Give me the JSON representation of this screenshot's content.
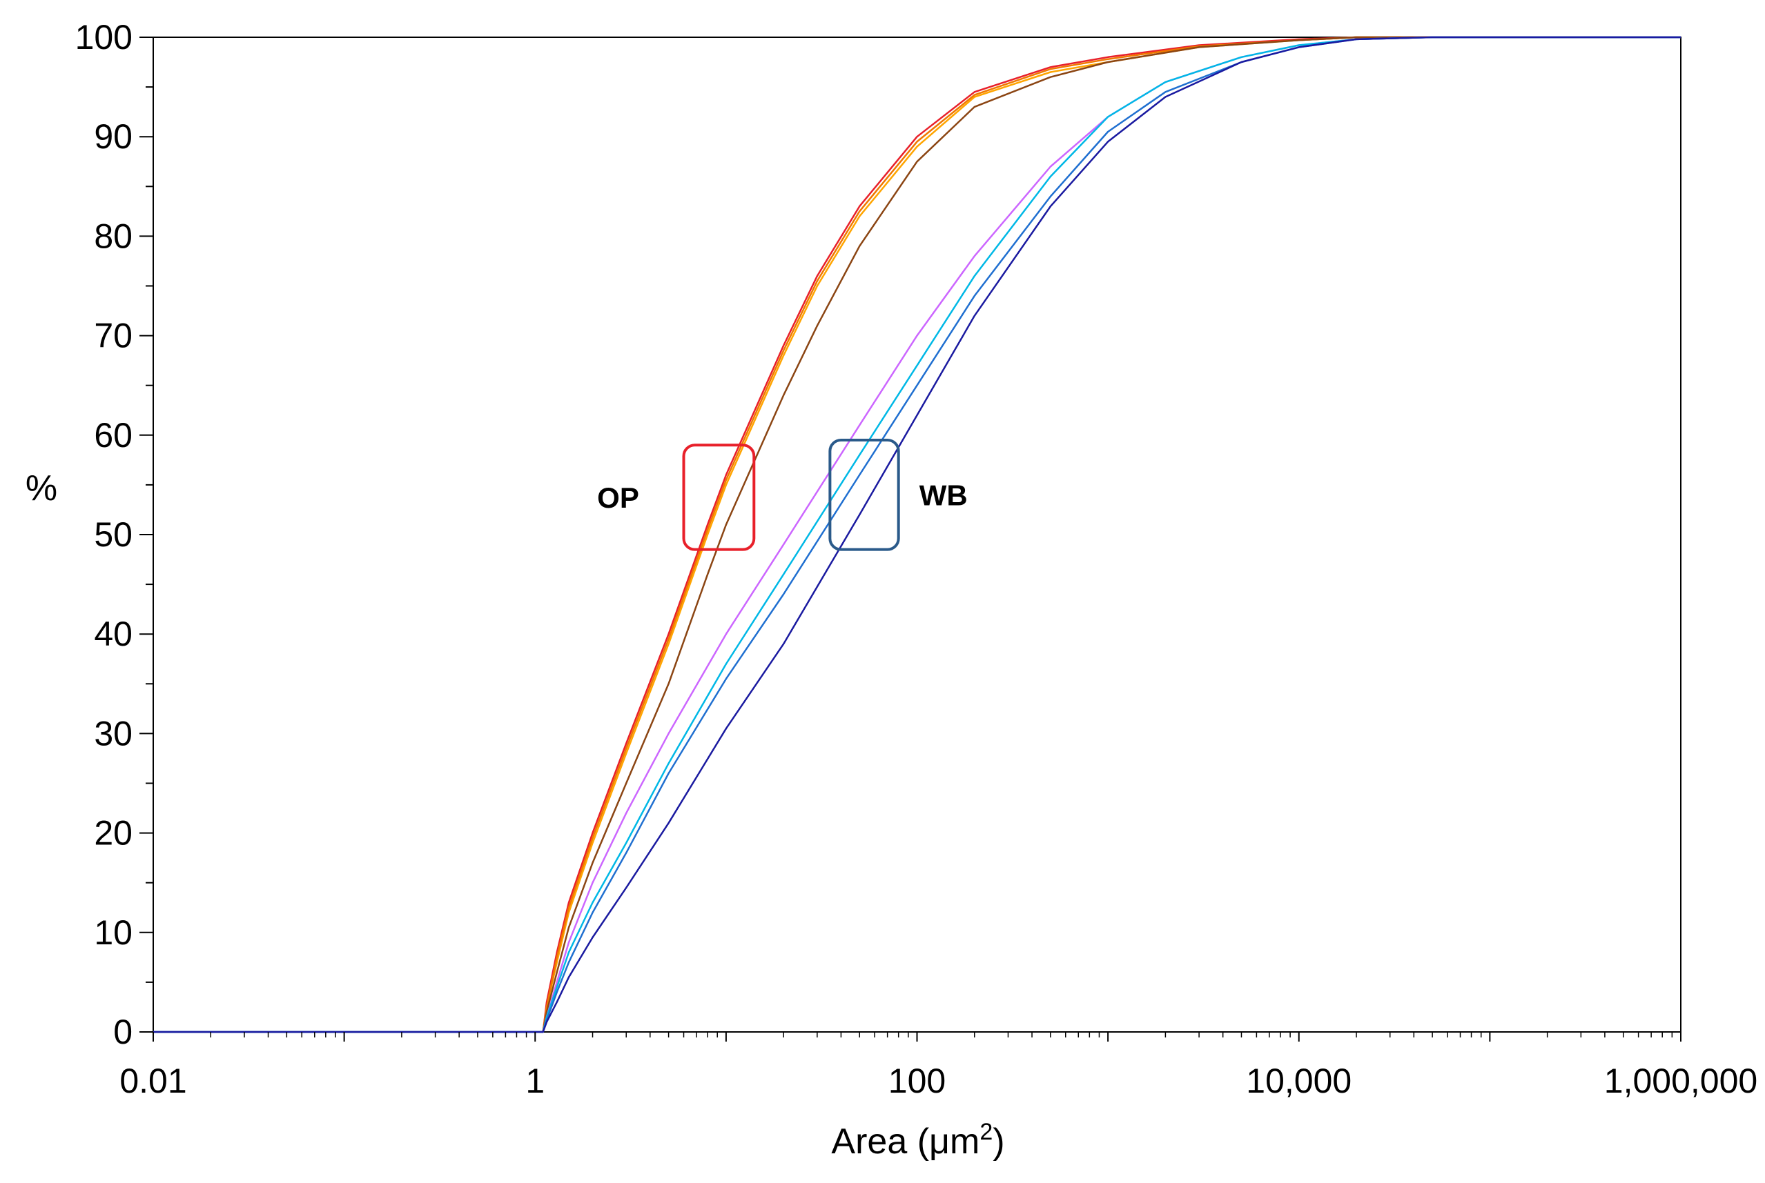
{
  "chart_data": {
    "type": "line",
    "title": "",
    "xlabel": "Area (μm",
    "xlabel_superscript": "2",
    "xlabel_close": ")",
    "ylabel": "%",
    "xscale": "log",
    "xlim": [
      0.01,
      1000000
    ],
    "ylim": [
      0,
      100
    ],
    "x_tick_labels": [
      "0.01",
      "1",
      "100",
      "10,000",
      "1,000,000"
    ],
    "x_tick_values": [
      0.01,
      1,
      100,
      10000,
      1000000
    ],
    "y_tick_labels": [
      "0",
      "10",
      "20",
      "30",
      "40",
      "50",
      "60",
      "70",
      "80",
      "90",
      "100"
    ],
    "y_tick_values": [
      0,
      10,
      20,
      30,
      40,
      50,
      60,
      70,
      80,
      90,
      100
    ],
    "grid": false,
    "legend": "none",
    "series": [
      {
        "name": "OP red",
        "group": "OP",
        "color": "#e8202a",
        "x": [
          0.01,
          1.1,
          1.15,
          1.3,
          1.5,
          2,
          3,
          5,
          8,
          10,
          20,
          30,
          50,
          100,
          200,
          500,
          1000,
          3000,
          10000,
          20000,
          100000,
          1000000
        ],
        "y": [
          0,
          0,
          3,
          8,
          13,
          20,
          29,
          40,
          51,
          56,
          69,
          76,
          83,
          90,
          94.5,
          97,
          98,
          99.2,
          99.8,
          100,
          100,
          100
        ]
      },
      {
        "name": "OP orange",
        "group": "OP",
        "color": "#ffa500",
        "x": [
          0.01,
          1.1,
          1.15,
          1.3,
          1.5,
          2,
          3,
          5,
          8,
          10,
          20,
          30,
          50,
          100,
          200,
          500,
          1000,
          3000,
          10000,
          20000,
          100000,
          1000000
        ],
        "y": [
          0,
          0,
          2.5,
          7,
          12,
          19,
          28,
          39,
          50,
          55,
          68,
          75,
          82,
          89,
          94,
          96.5,
          97.5,
          99,
          99.7,
          100,
          100,
          100
        ]
      },
      {
        "name": "OP dark orange",
        "group": "OP",
        "color": "#f07800",
        "x": [
          0.01,
          1.1,
          1.15,
          1.3,
          1.5,
          2,
          3,
          5,
          8,
          10,
          20,
          30,
          50,
          100,
          200,
          500,
          1000,
          3000,
          10000,
          20000,
          100000,
          1000000
        ],
        "y": [
          0,
          0,
          2.5,
          7.5,
          12.5,
          19.5,
          28.5,
          39.5,
          50.5,
          55.5,
          68.5,
          75.5,
          82.5,
          89.5,
          94.2,
          96.8,
          97.8,
          99.1,
          99.7,
          100,
          100,
          100
        ]
      },
      {
        "name": "OP brown",
        "group": "OP",
        "color": "#8b4513",
        "x": [
          0.01,
          1.1,
          1.15,
          1.3,
          1.5,
          2,
          3,
          5,
          8,
          10,
          20,
          30,
          50,
          100,
          200,
          500,
          1000,
          3000,
          10000,
          20000,
          100000,
          1000000
        ],
        "y": [
          0,
          0,
          2,
          6,
          10.5,
          17,
          25,
          35,
          46,
          51,
          64,
          71,
          79,
          87.5,
          93,
          96,
          97.5,
          99,
          99.7,
          100,
          100,
          100
        ]
      },
      {
        "name": "WB violet",
        "group": "WB",
        "color": "#cc66ff",
        "x": [
          0.01,
          1.1,
          1.15,
          1.3,
          1.5,
          2,
          3,
          5,
          10,
          20,
          50,
          100,
          200,
          500,
          1000,
          2000,
          5000,
          10000,
          20000,
          50000,
          1000000
        ],
        "y": [
          0,
          0,
          1.5,
          5,
          9,
          15,
          22,
          30,
          40,
          49,
          61,
          70,
          78,
          87,
          92,
          95.5,
          98,
          99.2,
          99.8,
          100,
          100
        ]
      },
      {
        "name": "WB cyan",
        "group": "WB",
        "color": "#00b8e6",
        "x": [
          0.01,
          1.1,
          1.15,
          1.3,
          1.5,
          2,
          3,
          5,
          10,
          20,
          50,
          100,
          200,
          500,
          1000,
          2000,
          5000,
          10000,
          20000,
          50000,
          1000000
        ],
        "y": [
          0,
          0,
          1.5,
          4.5,
          8,
          13,
          19,
          27,
          37,
          46,
          58,
          67,
          76,
          86,
          92,
          95.5,
          98,
          99.2,
          99.8,
          100,
          100
        ]
      },
      {
        "name": "WB blue",
        "group": "WB",
        "color": "#1f6fd0",
        "x": [
          0.01,
          1.1,
          1.15,
          1.3,
          1.5,
          2,
          3,
          5,
          10,
          20,
          50,
          100,
          200,
          500,
          1000,
          2000,
          5000,
          10000,
          20000,
          50000,
          1000000
        ],
        "y": [
          0,
          0,
          1.2,
          4,
          7,
          12,
          18,
          26,
          35.5,
          44,
          56,
          65,
          74,
          84,
          90.5,
          94.5,
          97.5,
          99,
          99.8,
          100,
          100
        ]
      },
      {
        "name": "WB navy",
        "group": "WB",
        "color": "#1a1aa0",
        "x": [
          0.01,
          1.1,
          1.15,
          1.3,
          1.5,
          2,
          3,
          5,
          10,
          20,
          50,
          100,
          200,
          500,
          1000,
          2000,
          5000,
          10000,
          20000,
          50000,
          1000000
        ],
        "y": [
          0,
          0,
          1,
          3,
          5.5,
          9.5,
          14.5,
          21,
          30.5,
          39,
          52,
          62,
          72,
          83,
          89.5,
          94,
          97.5,
          99,
          99.8,
          100,
          100
        ]
      }
    ],
    "annotations": [
      {
        "text": "OP",
        "color": "#e8202a",
        "box_x": [
          6,
          14
        ],
        "box_y": [
          48.5,
          59
        ]
      },
      {
        "text": "WB",
        "color": "#2a5a8a",
        "box_x": [
          35,
          80
        ],
        "box_y": [
          48.5,
          59.5
        ]
      }
    ]
  }
}
